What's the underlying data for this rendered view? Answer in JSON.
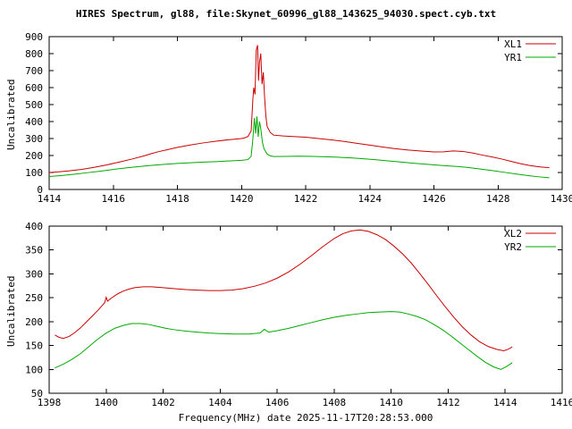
{
  "title": "HIRES Spectrum, gl88, file:Skynet_60996_gl88_143625_94030.spect.cyb.txt",
  "chart_data": [
    {
      "type": "line",
      "title": "",
      "xlabel": "",
      "ylabel": "Uncalibrated",
      "xlim": [
        1414,
        1430
      ],
      "ylim": [
        0,
        900
      ],
      "xticks": [
        1414,
        1416,
        1418,
        1420,
        1422,
        1424,
        1426,
        1428,
        1430
      ],
      "yticks": [
        0,
        100,
        200,
        300,
        400,
        500,
        600,
        700,
        800,
        900
      ],
      "grid": false,
      "legend_position": "top-right",
      "series": [
        {
          "name": "XL1",
          "color": "#cc0000",
          "points": [
            [
              1414.0,
              100
            ],
            [
              1414.3,
              104
            ],
            [
              1414.6,
              109
            ],
            [
              1415.0,
              118
            ],
            [
              1415.4,
              130
            ],
            [
              1415.8,
              145
            ],
            [
              1416.2,
              162
            ],
            [
              1416.6,
              180
            ],
            [
              1417.0,
              200
            ],
            [
              1417.2,
              212
            ],
            [
              1417.4,
              222
            ],
            [
              1417.7,
              235
            ],
            [
              1418.0,
              248
            ],
            [
              1418.4,
              262
            ],
            [
              1418.8,
              274
            ],
            [
              1419.2,
              284
            ],
            [
              1419.6,
              293
            ],
            [
              1420.0,
              300
            ],
            [
              1420.1,
              304
            ],
            [
              1420.2,
              312
            ],
            [
              1420.3,
              345
            ],
            [
              1420.35,
              520
            ],
            [
              1420.38,
              600
            ],
            [
              1420.42,
              560
            ],
            [
              1420.46,
              820
            ],
            [
              1420.5,
              850
            ],
            [
              1420.53,
              640
            ],
            [
              1420.56,
              750
            ],
            [
              1420.6,
              800
            ],
            [
              1420.64,
              620
            ],
            [
              1420.68,
              690
            ],
            [
              1420.72,
              540
            ],
            [
              1420.76,
              430
            ],
            [
              1420.8,
              370
            ],
            [
              1420.9,
              335
            ],
            [
              1421.0,
              320
            ],
            [
              1421.3,
              315
            ],
            [
              1421.6,
              312
            ],
            [
              1422.0,
              308
            ],
            [
              1422.4,
              300
            ],
            [
              1422.8,
              292
            ],
            [
              1423.2,
              283
            ],
            [
              1423.6,
              272
            ],
            [
              1424.0,
              261
            ],
            [
              1424.4,
              250
            ],
            [
              1424.8,
              240
            ],
            [
              1425.2,
              232
            ],
            [
              1425.6,
              226
            ],
            [
              1426.0,
              221
            ],
            [
              1426.3,
              222
            ],
            [
              1426.6,
              227
            ],
            [
              1426.9,
              224
            ],
            [
              1427.2,
              215
            ],
            [
              1427.5,
              203
            ],
            [
              1427.8,
              192
            ],
            [
              1428.1,
              180
            ],
            [
              1428.4,
              166
            ],
            [
              1428.7,
              152
            ],
            [
              1429.0,
              141
            ],
            [
              1429.3,
              133
            ],
            [
              1429.6,
              128
            ]
          ]
        },
        {
          "name": "YR1",
          "color": "#00aa00",
          "points": [
            [
              1414.0,
              76
            ],
            [
              1414.4,
              82
            ],
            [
              1414.8,
              90
            ],
            [
              1415.2,
              99
            ],
            [
              1415.6,
              108
            ],
            [
              1416.0,
              118
            ],
            [
              1416.4,
              127
            ],
            [
              1416.8,
              135
            ],
            [
              1417.2,
              142
            ],
            [
              1417.6,
              148
            ],
            [
              1418.0,
              153
            ],
            [
              1418.4,
              157
            ],
            [
              1418.8,
              161
            ],
            [
              1419.2,
              164
            ],
            [
              1419.6,
              168
            ],
            [
              1420.0,
              172
            ],
            [
              1420.2,
              176
            ],
            [
              1420.3,
              195
            ],
            [
              1420.35,
              290
            ],
            [
              1420.4,
              420
            ],
            [
              1420.44,
              330
            ],
            [
              1420.48,
              430
            ],
            [
              1420.52,
              310
            ],
            [
              1420.56,
              400
            ],
            [
              1420.6,
              360
            ],
            [
              1420.65,
              280
            ],
            [
              1420.7,
              240
            ],
            [
              1420.8,
              208
            ],
            [
              1420.9,
              198
            ],
            [
              1421.0,
              194
            ],
            [
              1421.4,
              195
            ],
            [
              1421.8,
              196
            ],
            [
              1422.2,
              195
            ],
            [
              1422.6,
              193
            ],
            [
              1423.0,
              190
            ],
            [
              1423.4,
              186
            ],
            [
              1423.8,
              181
            ],
            [
              1424.2,
              175
            ],
            [
              1424.6,
              168
            ],
            [
              1425.0,
              161
            ],
            [
              1425.4,
              154
            ],
            [
              1425.8,
              148
            ],
            [
              1426.2,
              142
            ],
            [
              1426.6,
              137
            ],
            [
              1427.0,
              131
            ],
            [
              1427.4,
              122
            ],
            [
              1427.8,
              112
            ],
            [
              1428.2,
              101
            ],
            [
              1428.6,
              90
            ],
            [
              1429.0,
              80
            ],
            [
              1429.3,
              74
            ],
            [
              1429.6,
              69
            ]
          ]
        }
      ]
    },
    {
      "type": "line",
      "title": "",
      "xlabel": "Frequency(MHz) date 2025-11-17T20:28:53.000",
      "ylabel": "Uncalibrated",
      "xlim": [
        1398,
        1416
      ],
      "ylim": [
        50,
        400
      ],
      "xticks": [
        1398,
        1400,
        1402,
        1404,
        1406,
        1408,
        1410,
        1412,
        1414,
        1416
      ],
      "yticks": [
        50,
        100,
        150,
        200,
        250,
        300,
        350,
        400
      ],
      "grid": false,
      "legend_position": "top-right",
      "series": [
        {
          "name": "XL2",
          "color": "#cc0000",
          "points": [
            [
              1398.2,
              172
            ],
            [
              1398.35,
              167
            ],
            [
              1398.5,
              165
            ],
            [
              1398.7,
              169
            ],
            [
              1398.9,
              177
            ],
            [
              1399.1,
              187
            ],
            [
              1399.3,
              199
            ],
            [
              1399.5,
              211
            ],
            [
              1399.7,
              223
            ],
            [
              1399.85,
              233
            ],
            [
              1399.95,
              240
            ],
            [
              1400.0,
              251
            ],
            [
              1400.05,
              243
            ],
            [
              1400.2,
              250
            ],
            [
              1400.4,
              258
            ],
            [
              1400.6,
              264
            ],
            [
              1400.8,
              268
            ],
            [
              1401.0,
              271
            ],
            [
              1401.3,
              273
            ],
            [
              1401.6,
              273
            ],
            [
              1402.0,
              271
            ],
            [
              1402.4,
              269
            ],
            [
              1402.8,
              267
            ],
            [
              1403.2,
              266
            ],
            [
              1403.6,
              265
            ],
            [
              1404.0,
              265
            ],
            [
              1404.4,
              266
            ],
            [
              1404.8,
              269
            ],
            [
              1405.2,
              274
            ],
            [
              1405.6,
              281
            ],
            [
              1406.0,
              291
            ],
            [
              1406.4,
              304
            ],
            [
              1406.8,
              320
            ],
            [
              1407.2,
              338
            ],
            [
              1407.6,
              357
            ],
            [
              1408.0,
              374
            ],
            [
              1408.3,
              384
            ],
            [
              1408.6,
              390
            ],
            [
              1408.9,
              392
            ],
            [
              1409.2,
              389
            ],
            [
              1409.5,
              382
            ],
            [
              1409.8,
              372
            ],
            [
              1410.1,
              358
            ],
            [
              1410.4,
              342
            ],
            [
              1410.7,
              323
            ],
            [
              1411.0,
              301
            ],
            [
              1411.3,
              278
            ],
            [
              1411.6,
              254
            ],
            [
              1411.9,
              231
            ],
            [
              1412.2,
              209
            ],
            [
              1412.5,
              189
            ],
            [
              1412.8,
              172
            ],
            [
              1413.1,
              158
            ],
            [
              1413.4,
              148
            ],
            [
              1413.7,
              142
            ],
            [
              1413.95,
              139
            ],
            [
              1414.1,
              142
            ],
            [
              1414.25,
              147
            ]
          ]
        },
        {
          "name": "YR2",
          "color": "#00aa00",
          "points": [
            [
              1398.2,
              103
            ],
            [
              1398.5,
              111
            ],
            [
              1398.8,
              121
            ],
            [
              1399.1,
              133
            ],
            [
              1399.4,
              148
            ],
            [
              1399.7,
              163
            ],
            [
              1400.0,
              176
            ],
            [
              1400.3,
              186
            ],
            [
              1400.6,
              192
            ],
            [
              1400.9,
              196
            ],
            [
              1401.2,
              196
            ],
            [
              1401.5,
              194
            ],
            [
              1401.8,
              190
            ],
            [
              1402.1,
              186
            ],
            [
              1402.4,
              183
            ],
            [
              1402.8,
              180
            ],
            [
              1403.2,
              178
            ],
            [
              1403.6,
              176
            ],
            [
              1404.0,
              175
            ],
            [
              1404.5,
              174
            ],
            [
              1405.0,
              174
            ],
            [
              1405.4,
              176
            ],
            [
              1405.55,
              184
            ],
            [
              1405.7,
              178
            ],
            [
              1406.0,
              181
            ],
            [
              1406.4,
              186
            ],
            [
              1406.8,
              192
            ],
            [
              1407.2,
              198
            ],
            [
              1407.6,
              204
            ],
            [
              1408.0,
              209
            ],
            [
              1408.4,
              213
            ],
            [
              1408.8,
              216
            ],
            [
              1409.2,
              219
            ],
            [
              1409.6,
              220
            ],
            [
              1410.0,
              221
            ],
            [
              1410.3,
              220
            ],
            [
              1410.6,
              216
            ],
            [
              1410.9,
              211
            ],
            [
              1411.2,
              204
            ],
            [
              1411.5,
              194
            ],
            [
              1411.8,
              183
            ],
            [
              1412.1,
              170
            ],
            [
              1412.4,
              156
            ],
            [
              1412.7,
              142
            ],
            [
              1413.0,
              128
            ],
            [
              1413.3,
              115
            ],
            [
              1413.6,
              105
            ],
            [
              1413.85,
              100
            ],
            [
              1414.05,
              106
            ],
            [
              1414.25,
              114
            ]
          ]
        }
      ]
    }
  ]
}
